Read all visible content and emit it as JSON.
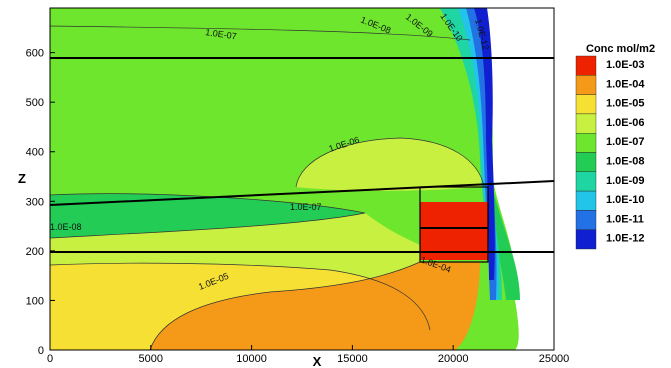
{
  "chart_data": {
    "type": "heatmap",
    "xlabel": "X",
    "ylabel": "Z",
    "xlim": [
      0,
      25000
    ],
    "ylim": [
      0,
      690
    ],
    "x_ticks": [
      0,
      5000,
      10000,
      15000,
      20000,
      25000
    ],
    "y_ticks": [
      0,
      100,
      200,
      300,
      400,
      500,
      600
    ],
    "x_tick_labels": [
      "0",
      "5000",
      "10000",
      "15000",
      "20000",
      "25000"
    ],
    "y_tick_labels": [
      "0",
      "100",
      "200",
      "300",
      "400",
      "500",
      "600"
    ],
    "legend": {
      "title": "Conc mol/m2",
      "position": "right",
      "levels": [
        {
          "label": "1.0E-03",
          "color": "#ee2200"
        },
        {
          "label": "1.0E-04",
          "color": "#f59a18"
        },
        {
          "label": "1.0E-05",
          "color": "#f5e033"
        },
        {
          "label": "1.0E-06",
          "color": "#c8f040"
        },
        {
          "label": "1.0E-07",
          "color": "#6ee62e"
        },
        {
          "label": "1.0E-08",
          "color": "#22cc55"
        },
        {
          "label": "1.0E-09",
          "color": "#1fd6a3"
        },
        {
          "label": "1.0E-10",
          "color": "#22c4e8"
        },
        {
          "label": "1.0E-11",
          "color": "#2272e6"
        },
        {
          "label": "1.0E-12",
          "color": "#1020d0"
        }
      ]
    },
    "contour_labels": [
      "1.0E-07",
      "1.0E-08",
      "1.0E-09",
      "1.0E-10",
      "1.0E-12",
      "1.0E-06",
      "1.0E-07",
      "1.0E-08",
      "1.0E-04",
      "1.0E-05"
    ],
    "horizontal_lines": [
      {
        "x": [
          0,
          25000
        ],
        "z": [
          595,
          595
        ]
      },
      {
        "x": [
          0,
          25000
        ],
        "z": [
          200,
          200
        ]
      },
      {
        "x": [
          0,
          25000
        ],
        "z": [
          298,
          345
        ]
      }
    ],
    "repository_block": {
      "x": [
        18300,
        21700
      ],
      "z": [
        210,
        345
      ],
      "divider_z": 250
    },
    "grid": false
  }
}
